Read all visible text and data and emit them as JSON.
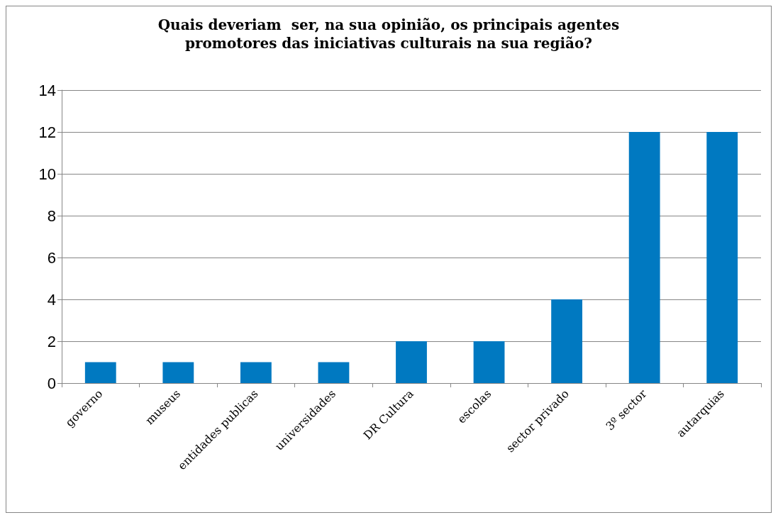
{
  "chart_data": {
    "type": "bar",
    "title": "Quais deveriam  ser, na sua opinião, os principais agentes\npromotores das iniciativas culturais na sua região?",
    "categories": [
      "governo",
      "museus",
      "entidades publicas",
      "universidades",
      "DR Cultura",
      "escolas",
      "sector privado",
      "3º sector",
      "autarquias"
    ],
    "values": [
      1,
      1,
      1,
      1,
      2,
      2,
      4,
      12,
      12
    ],
    "color": "#0079c1",
    "ylim": [
      0,
      14
    ],
    "yticks": [
      0,
      2,
      4,
      6,
      8,
      10,
      12,
      14
    ],
    "grid": "y"
  }
}
